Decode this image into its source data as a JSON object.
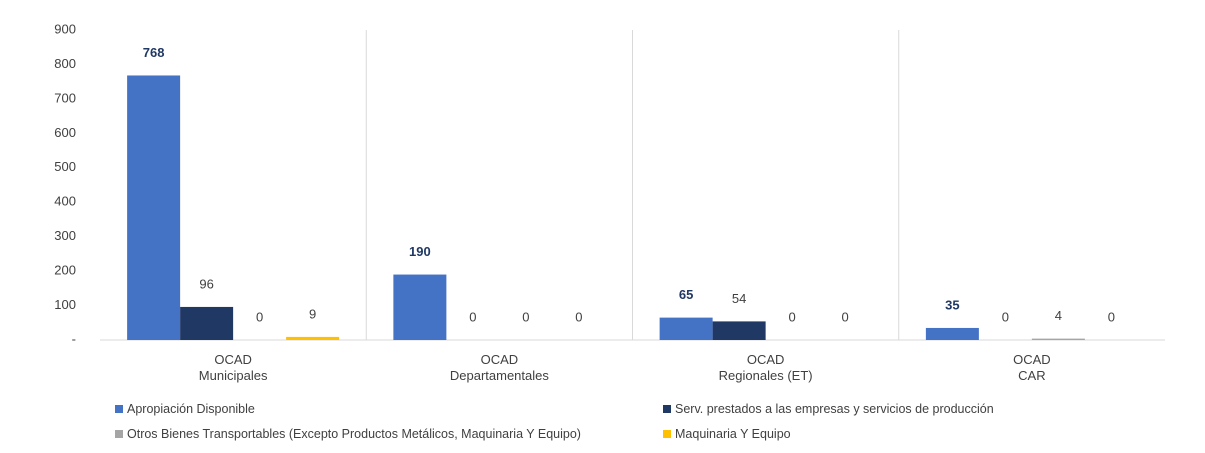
{
  "chart_data": {
    "type": "bar",
    "categories": [
      "OCAD\nMunicipales",
      "OCAD\nDepartamentales",
      "OCAD\nRegionales (ET)",
      "OCAD\nCAR"
    ],
    "series": [
      {
        "name": "Apropiación Disponible",
        "color": "#4472c4",
        "values": [
          768,
          190,
          65,
          35
        ]
      },
      {
        "name": "Serv. prestados a las empresas y servicios de producción",
        "color": "#203864",
        "values": [
          96,
          0,
          54,
          0
        ]
      },
      {
        "name": "Otros Bienes Transportables (Excepto Productos Metálicos, Maquinaria Y Equipo)",
        "color": "#a5a5a5",
        "values": [
          0,
          0,
          0,
          4
        ]
      },
      {
        "name": "Maquinaria Y Equipo",
        "color": "#ffc000",
        "values": [
          9,
          0,
          0,
          0
        ]
      }
    ],
    "ylim": [
      0,
      900
    ],
    "yticks": [
      {
        "value": 0,
        "label": "-"
      },
      100,
      200,
      300,
      400,
      500,
      600,
      700,
      800,
      900
    ]
  }
}
